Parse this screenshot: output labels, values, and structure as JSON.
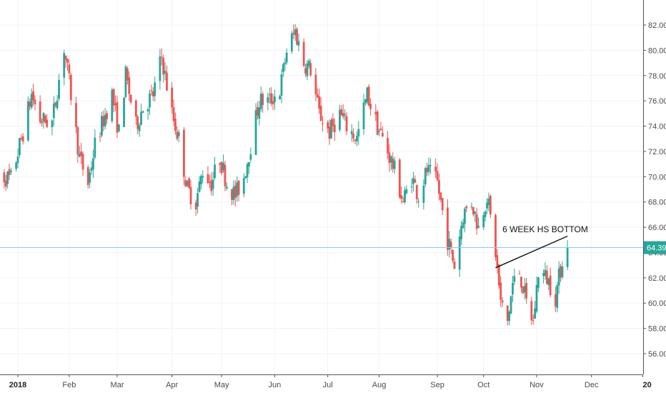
{
  "chart_data": {
    "type": "candlestick",
    "title": "",
    "xlabel": "",
    "ylabel": "",
    "ylim": [
      55,
      83
    ],
    "y_ticks": [
      "56.00",
      "58.00",
      "60.00",
      "62.00",
      "64.00",
      "66.00",
      "68.00",
      "70.00",
      "72.00",
      "74.00",
      "76.00",
      "78.00",
      "80.00",
      "82.00"
    ],
    "x_ticks": [
      {
        "label": "2018",
        "date": "2018-01-02",
        "bold": true
      },
      {
        "label": "Feb",
        "date": "2018-02-01"
      },
      {
        "label": "Mar",
        "date": "2018-03-01"
      },
      {
        "label": "Apr",
        "date": "2018-04-02"
      },
      {
        "label": "May",
        "date": "2018-05-01"
      },
      {
        "label": "Jun",
        "date": "2018-06-01"
      },
      {
        "label": "Jul",
        "date": "2018-07-02"
      },
      {
        "label": "Aug",
        "date": "2018-08-01"
      },
      {
        "label": "Sep",
        "date": "2018-09-04"
      },
      {
        "label": "Oct",
        "date": "2018-10-01"
      },
      {
        "label": "Nov",
        "date": "2018-11-01"
      },
      {
        "label": "Dec",
        "date": "2018-12-03"
      },
      {
        "label": "20",
        "date": "2019-01-02",
        "bold": true
      }
    ],
    "last_price": "64.39",
    "last_value": 64.39,
    "colors": {
      "up": "#26a69a",
      "down": "#ef5350",
      "grid": "#f0f3fa",
      "price_line": "#7fd3dc",
      "price_tag": "#26a69a",
      "axis": "#555555",
      "trendline": "#111111"
    },
    "grid": true,
    "annotations": [
      {
        "text": "6 WEEK HS BOTTOM",
        "type": "text",
        "date": "2018-10-12",
        "value": 65.6
      },
      {
        "type": "trendline",
        "start": {
          "date": "2018-10-08",
          "value": 62.8
        },
        "end": {
          "date": "2018-11-19",
          "value": 65.3
        }
      }
    ],
    "anchors": [
      [
        "2017-12-20",
        70.2
      ],
      [
        "2017-12-29",
        69.8
      ],
      [
        "2018-01-05",
        73.5
      ],
      [
        "2018-01-10",
        76.5
      ],
      [
        "2018-01-15",
        74.5
      ],
      [
        "2018-01-22",
        74.3
      ],
      [
        "2018-01-29",
        80.2
      ],
      [
        "2018-02-02",
        76.5
      ],
      [
        "2018-02-07",
        71.5
      ],
      [
        "2018-02-12",
        69.5
      ],
      [
        "2018-02-16",
        72.5
      ],
      [
        "2018-02-21",
        74.5
      ],
      [
        "2018-02-26",
        76.5
      ],
      [
        "2018-03-02",
        73.5
      ],
      [
        "2018-03-06",
        78.0
      ],
      [
        "2018-03-12",
        74.0
      ],
      [
        "2018-03-16",
        75.5
      ],
      [
        "2018-03-22",
        76.5
      ],
      [
        "2018-03-27",
        79.5
      ],
      [
        "2018-04-02",
        75.0
      ],
      [
        "2018-04-06",
        73.0
      ],
      [
        "2018-04-11",
        69.0
      ],
      [
        "2018-04-16",
        68.0
      ],
      [
        "2018-04-20",
        70.5
      ],
      [
        "2018-04-25",
        69.5
      ],
      [
        "2018-04-30",
        71.5
      ],
      [
        "2018-05-04",
        69.5
      ],
      [
        "2018-05-09",
        68.5
      ],
      [
        "2018-05-14",
        70.0
      ],
      [
        "2018-05-18",
        72.5
      ],
      [
        "2018-05-23",
        76.0
      ],
      [
        "2018-05-29",
        76.0
      ],
      [
        "2018-06-04",
        76.8
      ],
      [
        "2018-06-08",
        80.0
      ],
      [
        "2018-06-13",
        81.5
      ],
      [
        "2018-06-18",
        79.0
      ],
      [
        "2018-06-22",
        78.5
      ],
      [
        "2018-06-27",
        75.0
      ],
      [
        "2018-07-03",
        73.5
      ],
      [
        "2018-07-09",
        75.0
      ],
      [
        "2018-07-13",
        74.0
      ],
      [
        "2018-07-19",
        73.0
      ],
      [
        "2018-07-25",
        76.5
      ],
      [
        "2018-07-31",
        74.0
      ],
      [
        "2018-08-06",
        72.0
      ],
      [
        "2018-08-10",
        70.5
      ],
      [
        "2018-08-15",
        68.0
      ],
      [
        "2018-08-20",
        70.0
      ],
      [
        "2018-08-24",
        68.5
      ],
      [
        "2018-08-29",
        70.5
      ],
      [
        "2018-09-04",
        69.5
      ],
      [
        "2018-09-10",
        65.0
      ],
      [
        "2018-09-14",
        63.0
      ],
      [
        "2018-09-19",
        67.0
      ],
      [
        "2018-09-24",
        68.0
      ],
      [
        "2018-09-28",
        66.0
      ],
      [
        "2018-10-03",
        68.5
      ],
      [
        "2018-10-08",
        64.0
      ],
      [
        "2018-10-11",
        60.0
      ],
      [
        "2018-10-15",
        58.5
      ],
      [
        "2018-10-18",
        61.5
      ],
      [
        "2018-10-22",
        62.5
      ],
      [
        "2018-10-26",
        60.0
      ],
      [
        "2018-10-30",
        58.5
      ],
      [
        "2018-11-02",
        62.5
      ],
      [
        "2018-11-07",
        62.0
      ],
      [
        "2018-11-12",
        60.5
      ],
      [
        "2018-11-16",
        63.5
      ],
      [
        "2018-11-19",
        64.39
      ]
    ],
    "end_date": "2018-11-19"
  }
}
